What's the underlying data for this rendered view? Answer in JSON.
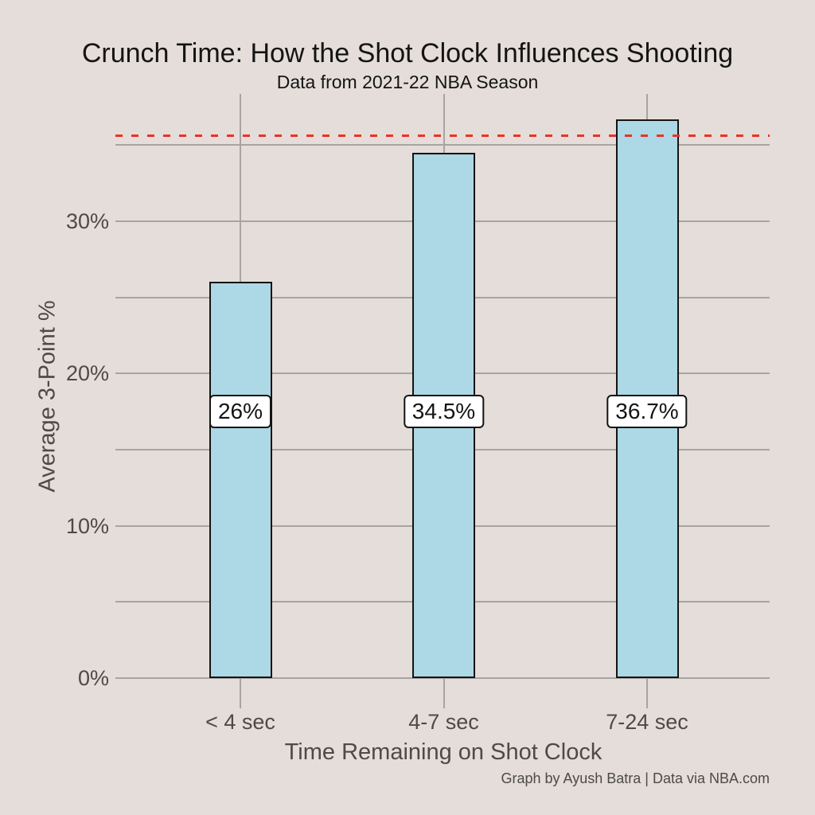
{
  "chart_data": {
    "type": "bar",
    "title": "Crunch Time: How the Shot Clock Influences Shooting",
    "subtitle": "Data from 2021-22 NBA Season",
    "xlabel": "Time Remaining on Shot Clock",
    "ylabel": "Average 3-Point %",
    "caption": "Graph by Ayush Batra | Data via NBA.com",
    "categories": [
      "< 4 sec",
      "4-7 sec",
      "7-24 sec"
    ],
    "values": [
      26,
      34.5,
      36.7
    ],
    "bar_labels": [
      "26%",
      "34.5%",
      "36.7%"
    ],
    "y_ticks": [
      {
        "value": 0,
        "label": "0%"
      },
      {
        "value": 10,
        "label": "10%"
      },
      {
        "value": 20,
        "label": "20%"
      },
      {
        "value": 30,
        "label": "30%"
      }
    ],
    "minor_gridlines_y": [
      5,
      15,
      25,
      35
    ],
    "major_gridlines_y": [
      0,
      10,
      20,
      30
    ],
    "ylim": [
      0,
      38.4
    ],
    "grid": "on",
    "legend": "none",
    "reference_line": {
      "value": 35.6,
      "style": "dashed",
      "color": "#EE3124"
    },
    "colors": {
      "background": "#E4DDD9",
      "gridline": "#A8A4A1",
      "bar_fill": "#ADD8E6",
      "bar_border": "#141414",
      "title_text": "#141414",
      "axis_text": "#4D4A48"
    }
  }
}
